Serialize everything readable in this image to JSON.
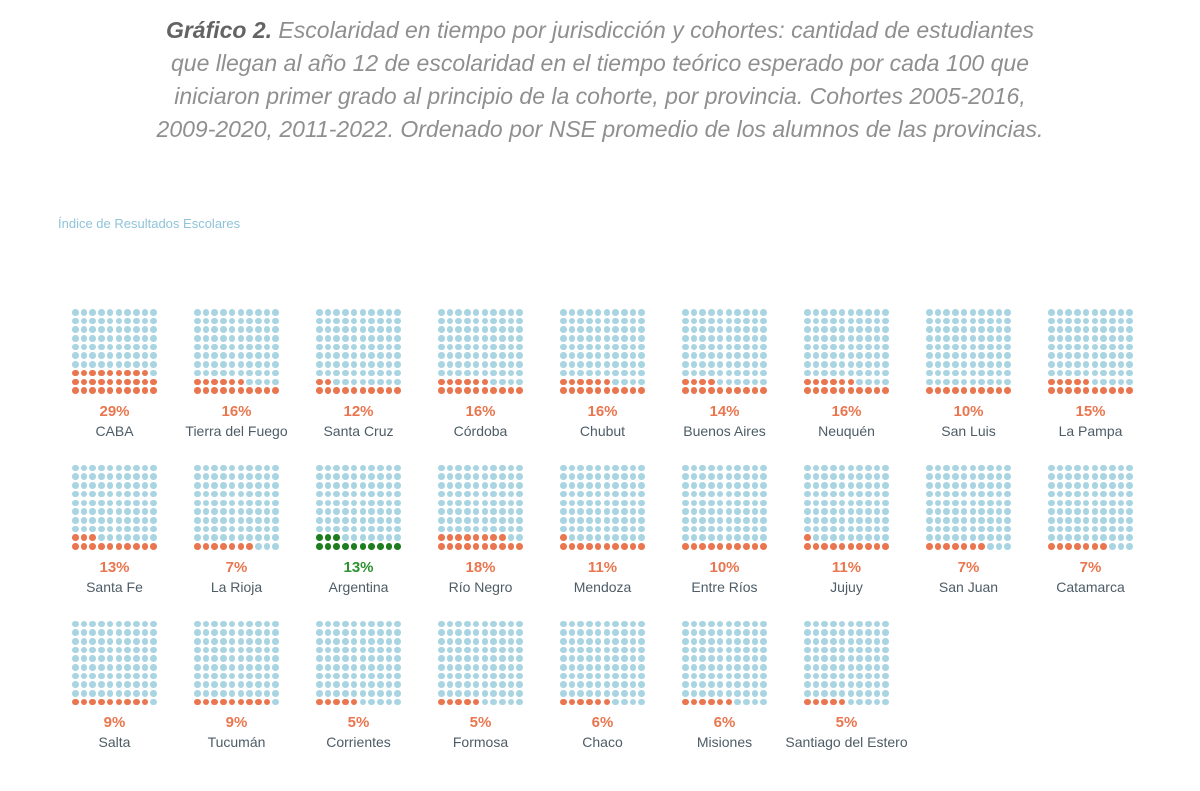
{
  "title": {
    "prefix": "Gráfico 2.",
    "lines": [
      " Escolaridad en tiempo por jurisdicción y cohortes: cantidad de estudiantes",
      "que llegan al año 12 de escolaridad en el tiempo teórico esperado por cada 100 que",
      "iniciaron primer grado al principio de la cohorte, por provincia. Cohortes 2005-2016,",
      "2009-2020, 2011-2022. Ordenado por NSE promedio de los alumnos de las provincias."
    ]
  },
  "axis_label": "Índice de Resultados Escolares",
  "colors": {
    "dot_blue": "#A9D5E2",
    "dot_orange": "#E9764F",
    "dot_green": "#1E7D1E",
    "accent_orange": "#E9764F",
    "accent_green": "#2E9232",
    "province_label": "#4D5C66",
    "title_gray": "#8F8F8F",
    "title_bold_gray": "#636363",
    "axis_label_blue": "#8FC3D9"
  },
  "chart_data": {
    "type": "waffle",
    "title": "Gráfico 2. Escolaridad en tiempo por jurisdicción y cohortes: cantidad de estudiantes que llegan al año 12 de escolaridad en el tiempo teórico esperado por cada 100 que iniciaron primer grado al principio de la cohorte, por provincia. Cohortes 2005-2016, 2009-2020, 2011-2022. Ordenado por NSE promedio de los alumnos de las provincias.",
    "legend": "Índice de Resultados Escolares",
    "grid_rows": 10,
    "grid_cols": 10,
    "unit": "%",
    "fill_order": "bottom-left, row by row",
    "highlight_name": "Argentina",
    "rows": [
      [
        {
          "name": "CABA",
          "value": 29
        },
        {
          "name": "Tierra del Fuego",
          "value": 16
        },
        {
          "name": "Santa Cruz",
          "value": 12
        },
        {
          "name": "Córdoba",
          "value": 16
        },
        {
          "name": "Chubut",
          "value": 16
        },
        {
          "name": "Buenos Aires",
          "value": 14
        },
        {
          "name": "Neuquén",
          "value": 16
        },
        {
          "name": "San Luis",
          "value": 10
        },
        {
          "name": "La Pampa",
          "value": 15
        }
      ],
      [
        {
          "name": "Santa Fe",
          "value": 13
        },
        {
          "name": "La Rioja",
          "value": 7
        },
        {
          "name": "Argentina",
          "value": 13,
          "highlight": true
        },
        {
          "name": "Río Negro",
          "value": 18
        },
        {
          "name": "Mendoza",
          "value": 11
        },
        {
          "name": "Entre Ríos",
          "value": 10
        },
        {
          "name": "Jujuy",
          "value": 11
        },
        {
          "name": "San Juan",
          "value": 7
        },
        {
          "name": "Catamarca",
          "value": 7
        }
      ],
      [
        {
          "name": "Salta",
          "value": 9
        },
        {
          "name": "Tucumán",
          "value": 9
        },
        {
          "name": "Corrientes",
          "value": 5
        },
        {
          "name": "Formosa",
          "value": 5
        },
        {
          "name": "Chaco",
          "value": 6
        },
        {
          "name": "Misiones",
          "value": 6
        },
        {
          "name": "Santiago del Estero",
          "value": 5
        }
      ]
    ]
  }
}
